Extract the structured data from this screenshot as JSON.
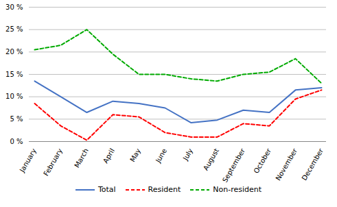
{
  "chart_data": {
    "type": "line",
    "categories": [
      "January",
      "February",
      "March",
      "April",
      "May",
      "June",
      "July",
      "August",
      "September",
      "October",
      "November",
      "December"
    ],
    "series": [
      {
        "name": "Total",
        "color": "#4472C4",
        "line_style": "solid",
        "values": [
          13.5,
          10.0,
          6.5,
          9.0,
          8.5,
          7.5,
          4.2,
          4.8,
          7.0,
          6.5,
          11.5,
          12.0
        ]
      },
      {
        "name": "Resident",
        "color": "#FF0000",
        "line_style": "dashed",
        "values": [
          8.5,
          3.5,
          0.3,
          6.0,
          5.5,
          2.0,
          1.0,
          1.0,
          4.0,
          3.5,
          9.5,
          11.5
        ]
      },
      {
        "name": "Non-resident",
        "color": "#00AA00",
        "line_style": "dashed",
        "values": [
          20.5,
          21.5,
          25.0,
          19.5,
          15.0,
          15.0,
          14.0,
          13.5,
          15.0,
          15.5,
          18.5,
          13.0
        ]
      }
    ],
    "ylim": [
      0,
      30
    ],
    "yticks": [
      {
        "value": 0,
        "label": "0 %"
      },
      {
        "value": 5,
        "label": "5 %"
      },
      {
        "value": 10,
        "label": "10 %"
      },
      {
        "value": 15,
        "label": "15 %"
      },
      {
        "value": 20,
        "label": "20 %"
      },
      {
        "value": 25,
        "label": "25 %"
      },
      {
        "value": 30,
        "label": "30 %"
      }
    ],
    "grid": true,
    "legend": "bottom"
  }
}
